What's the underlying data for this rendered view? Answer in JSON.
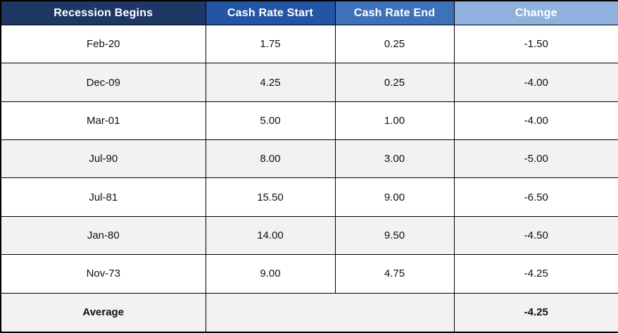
{
  "chart_data": {
    "type": "table",
    "title": "",
    "columns": [
      "Recession Begins",
      "Cash Rate Start",
      "Cash Rate End",
      "Change"
    ],
    "rows": [
      [
        "Feb-20",
        "1.75",
        "0.25",
        "-1.50"
      ],
      [
        "Dec-09",
        "4.25",
        "0.25",
        "-4.00"
      ],
      [
        "Mar-01",
        "5.00",
        "1.00",
        "-4.00"
      ],
      [
        "Jul-90",
        "8.00",
        "3.00",
        "-5.00"
      ],
      [
        "Jul-81",
        "15.50",
        "9.00",
        "-6.50"
      ],
      [
        "Jan-80",
        "14.00",
        "9.50",
        "-4.50"
      ],
      [
        "Nov-73",
        "9.00",
        "4.75",
        "-4.25"
      ]
    ],
    "footer_row": [
      "Average",
      "",
      "-4.25"
    ]
  },
  "table": {
    "headers": [
      {
        "label": "Recession Begins",
        "bg": "#1E3765"
      },
      {
        "label": "Cash Rate Start",
        "bg": "#2255A4"
      },
      {
        "label": "Cash Rate End",
        "bg": "#3D72BA"
      },
      {
        "label": "Change",
        "bg": "#8FB1DE"
      }
    ],
    "rows": [
      [
        "Feb-20",
        "1.75",
        "0.25",
        "-1.50"
      ],
      [
        "Dec-09",
        "4.25",
        "0.25",
        "-4.00"
      ],
      [
        "Mar-01",
        "5.00",
        "1.00",
        "-4.00"
      ],
      [
        "Jul-90",
        "8.00",
        "3.00",
        "-5.00"
      ],
      [
        "Jul-81",
        "15.50",
        "9.00",
        "-6.50"
      ],
      [
        "Jan-80",
        "14.00",
        "9.50",
        "-4.50"
      ],
      [
        "Nov-73",
        "9.00",
        "4.75",
        "-4.25"
      ]
    ],
    "average": {
      "label": "Average",
      "merged": "",
      "change": "-4.25"
    }
  },
  "colors": {
    "header_col1_bg": "#1E3765",
    "header_col2_bg": "#2255A4",
    "header_col3_bg": "#3D72BA",
    "header_col4_bg": "#8FB1DE",
    "header_text": "#FFFFFF",
    "stripe_row_bg": "#F2F2F2",
    "plain_row_bg": "#FFFFFF",
    "border": "#000000",
    "body_text": "#111111"
  }
}
